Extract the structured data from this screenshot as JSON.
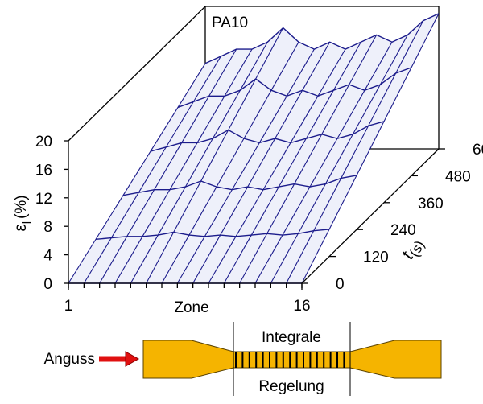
{
  "chart_data": {
    "type": "surface3d",
    "title": "PA10",
    "color": "#1c1c8c",
    "ylabel": {
      "symbol": "ε",
      "subscript": "l",
      "unit": "(%)"
    },
    "xlabel": "Zone",
    "tlabel": {
      "symbol": "t",
      "unit": "(s)"
    },
    "x": [
      1,
      2,
      3,
      4,
      5,
      6,
      7,
      8,
      9,
      10,
      11,
      12,
      13,
      14,
      15,
      16
    ],
    "xlim": [
      1,
      16
    ],
    "xticks": [
      1,
      16
    ],
    "t": [
      0,
      120,
      240,
      360,
      480,
      600
    ],
    "tlim": [
      0,
      600
    ],
    "tticks": [
      0,
      120,
      240,
      360,
      480,
      600
    ],
    "ylim": [
      0,
      20
    ],
    "yticks": [
      0,
      4,
      8,
      12,
      16,
      20
    ],
    "z": [
      [
        0,
        0,
        0,
        0,
        0,
        0,
        0,
        0,
        0,
        0,
        0,
        0,
        0,
        0,
        0,
        0
      ],
      [
        2.4,
        2.6,
        2.8,
        2.8,
        3,
        3.4,
        3,
        2.8,
        3,
        2.8,
        3,
        3.2,
        3,
        3.2,
        3.6,
        3.8
      ],
      [
        4.8,
        5.2,
        5.6,
        5.6,
        6,
        6.8,
        6,
        5.6,
        6,
        5.6,
        6,
        6.4,
        6,
        6.4,
        7.2,
        7.6
      ],
      [
        7.2,
        7.8,
        8.4,
        8.4,
        9,
        10.2,
        9,
        8.4,
        9,
        8.4,
        9,
        9.6,
        9,
        9.6,
        10.8,
        11.4
      ],
      [
        9.6,
        10.4,
        11.2,
        11.2,
        12,
        13.6,
        12,
        11.2,
        12,
        11.2,
        12,
        12.8,
        12,
        12.8,
        14.4,
        15.2
      ],
      [
        12,
        13,
        14,
        14,
        15,
        17,
        15,
        14,
        15,
        14,
        15,
        16,
        15,
        16,
        18,
        19
      ]
    ]
  },
  "diagram": {
    "inlet_label": "Anguss",
    "zone_label_top": "Integrale",
    "zone_label_bottom": "Regelung"
  }
}
